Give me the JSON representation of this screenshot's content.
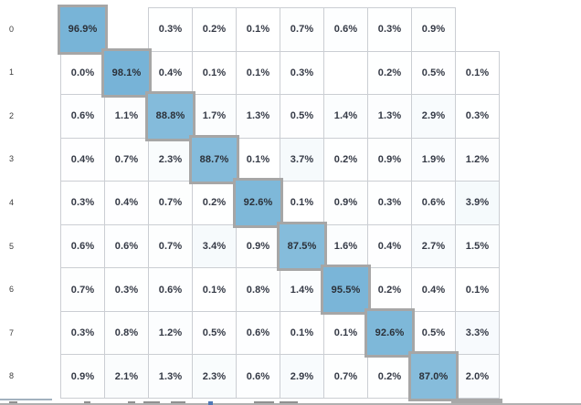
{
  "title": "confusion matrix heatmap (classes 0-8 visible, row 9 clipped)",
  "colors": {
    "diag_fill_base": "#74b2d6",
    "diag_border": "#a6a6a6",
    "cell_border": "#cbced3",
    "cell_tint_base": "#74b2d6",
    "cell_text": "#343945",
    "row_label_text": "#3c3c3c",
    "bottom_divider": "#b0b0b0",
    "bottom_thick_border": "#a8a8a8",
    "left_edge_fragment": "#a2b1bf",
    "clipped_text_fragment": "#909090",
    "clipped_blue_fragment": "#4f78b5"
  },
  "chart_data": {
    "type": "heatmap",
    "title": "",
    "xlabel": "",
    "ylabel": "",
    "row_labels": [
      "0",
      "1",
      "2",
      "3",
      "4",
      "5",
      "6",
      "7",
      "8"
    ],
    "n_cols": 10,
    "col_labels_visible": false,
    "legend": "none",
    "diagonal_highlighted": true,
    "clipped_partial_row_at_bottom": true,
    "cells": [
      [
        "96.9%",
        "",
        "0.3%",
        "0.2%",
        "0.1%",
        "0.7%",
        "0.6%",
        "0.3%",
        "0.9%",
        ""
      ],
      [
        "0.0%",
        "98.1%",
        "0.4%",
        "0.1%",
        "0.1%",
        "0.3%",
        "",
        "0.2%",
        "0.5%",
        "0.1%"
      ],
      [
        "0.6%",
        "1.1%",
        "88.8%",
        "1.7%",
        "1.3%",
        "0.5%",
        "1.4%",
        "1.3%",
        "2.9%",
        "0.3%"
      ],
      [
        "0.4%",
        "0.7%",
        "2.3%",
        "88.7%",
        "0.1%",
        "3.7%",
        "0.2%",
        "0.9%",
        "1.9%",
        "1.2%"
      ],
      [
        "0.3%",
        "0.4%",
        "0.7%",
        "0.2%",
        "92.6%",
        "0.1%",
        "0.9%",
        "0.3%",
        "0.6%",
        "3.9%"
      ],
      [
        "0.6%",
        "0.6%",
        "0.7%",
        "3.4%",
        "0.9%",
        "87.5%",
        "1.6%",
        "0.4%",
        "2.7%",
        "1.5%"
      ],
      [
        "0.7%",
        "0.3%",
        "0.6%",
        "0.1%",
        "0.8%",
        "1.4%",
        "95.5%",
        "0.2%",
        "0.4%",
        "0.1%"
      ],
      [
        "0.3%",
        "0.8%",
        "1.2%",
        "0.5%",
        "0.6%",
        "0.1%",
        "0.1%",
        "92.6%",
        "0.5%",
        "3.3%"
      ],
      [
        "0.9%",
        "2.1%",
        "1.3%",
        "2.3%",
        "0.6%",
        "2.9%",
        "0.7%",
        "0.2%",
        "87.0%",
        "2.0%"
      ]
    ]
  }
}
